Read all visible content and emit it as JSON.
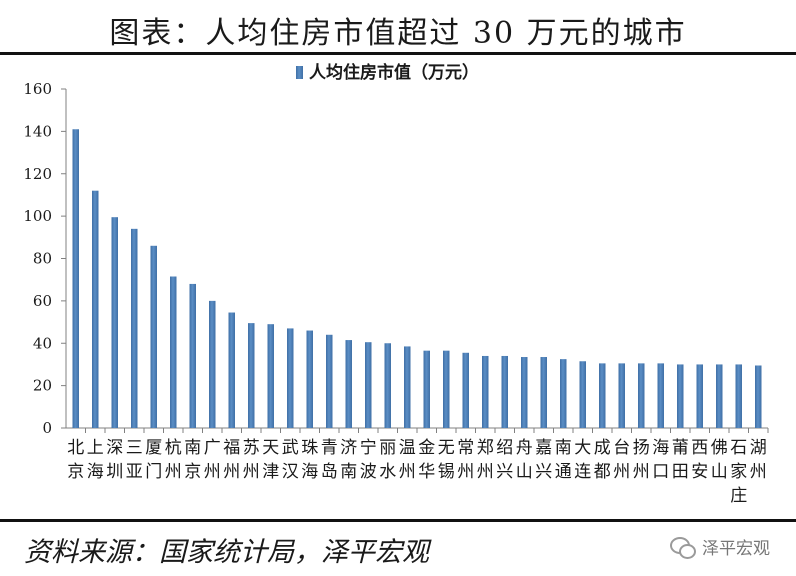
{
  "page": {
    "title": "图表：人均住房市值超过 30 万元的城市",
    "source": "资料来源：国家统计局，泽平宏观",
    "watermark": "泽平宏观"
  },
  "colors": {
    "bar": "#5b8ec5",
    "bar_dark": "#3f6fa6",
    "axis": "#808080",
    "text": "#1a1a1a"
  },
  "icons": {
    "watermark": "wechat-icon"
  },
  "chart_data": {
    "type": "bar",
    "title": "",
    "xlabel": "",
    "ylabel": "",
    "ylim": [
      0,
      160
    ],
    "yticks": [
      0,
      20,
      40,
      60,
      80,
      100,
      120,
      140,
      160
    ],
    "grid": false,
    "legend_position": "top-center",
    "categories": [
      "北京",
      "上海",
      "深圳",
      "三亚",
      "厦门",
      "杭州",
      "南京",
      "广州",
      "福州",
      "苏州",
      "天津",
      "武汉",
      "珠海",
      "青岛",
      "济南",
      "宁波",
      "丽水",
      "温州",
      "金华",
      "无锡",
      "常州",
      "郑州",
      "绍兴",
      "舟山",
      "嘉兴",
      "南通",
      "大连",
      "成都",
      "台州",
      "扬州",
      "海口",
      "莆田",
      "西安",
      "佛山",
      "石家庄",
      "湖州"
    ],
    "category_lines": [
      [
        "北",
        "京"
      ],
      [
        "上",
        "海"
      ],
      [
        "深",
        "圳"
      ],
      [
        "三",
        "亚"
      ],
      [
        "厦",
        "门"
      ],
      [
        "杭",
        "州"
      ],
      [
        "南",
        "京"
      ],
      [
        "广",
        "州"
      ],
      [
        "福",
        "州"
      ],
      [
        "苏",
        "州"
      ],
      [
        "天",
        "津"
      ],
      [
        "武",
        "汉"
      ],
      [
        "珠",
        "海"
      ],
      [
        "青",
        "岛"
      ],
      [
        "济",
        "南"
      ],
      [
        "宁",
        "波"
      ],
      [
        "丽",
        "水"
      ],
      [
        "温",
        "州"
      ],
      [
        "金",
        "华"
      ],
      [
        "无",
        "锡"
      ],
      [
        "常",
        "州"
      ],
      [
        "郑",
        "州"
      ],
      [
        "绍",
        "兴"
      ],
      [
        "舟",
        "山"
      ],
      [
        "嘉",
        "兴"
      ],
      [
        "南",
        "通"
      ],
      [
        "大",
        "连"
      ],
      [
        "成",
        "都"
      ],
      [
        "台",
        "州"
      ],
      [
        "扬",
        "州"
      ],
      [
        "海",
        "口"
      ],
      [
        "莆",
        "田"
      ],
      [
        "西",
        "安"
      ],
      [
        "佛",
        "山"
      ],
      [
        "石",
        "家",
        "庄"
      ],
      [
        "湖",
        "州"
      ]
    ],
    "series": [
      {
        "name": "人均住房市值（万元）",
        "values": [
          141,
          112,
          99.5,
          94,
          86,
          71.5,
          68,
          60,
          54.5,
          49.5,
          49,
          47,
          46,
          44,
          41.5,
          40.5,
          40,
          38.5,
          36.5,
          36.5,
          35.5,
          34,
          34,
          33.5,
          33.5,
          32.5,
          31.5,
          30.5,
          30.5,
          30.5,
          30.5,
          30,
          30,
          30,
          30,
          29.5
        ]
      }
    ]
  }
}
